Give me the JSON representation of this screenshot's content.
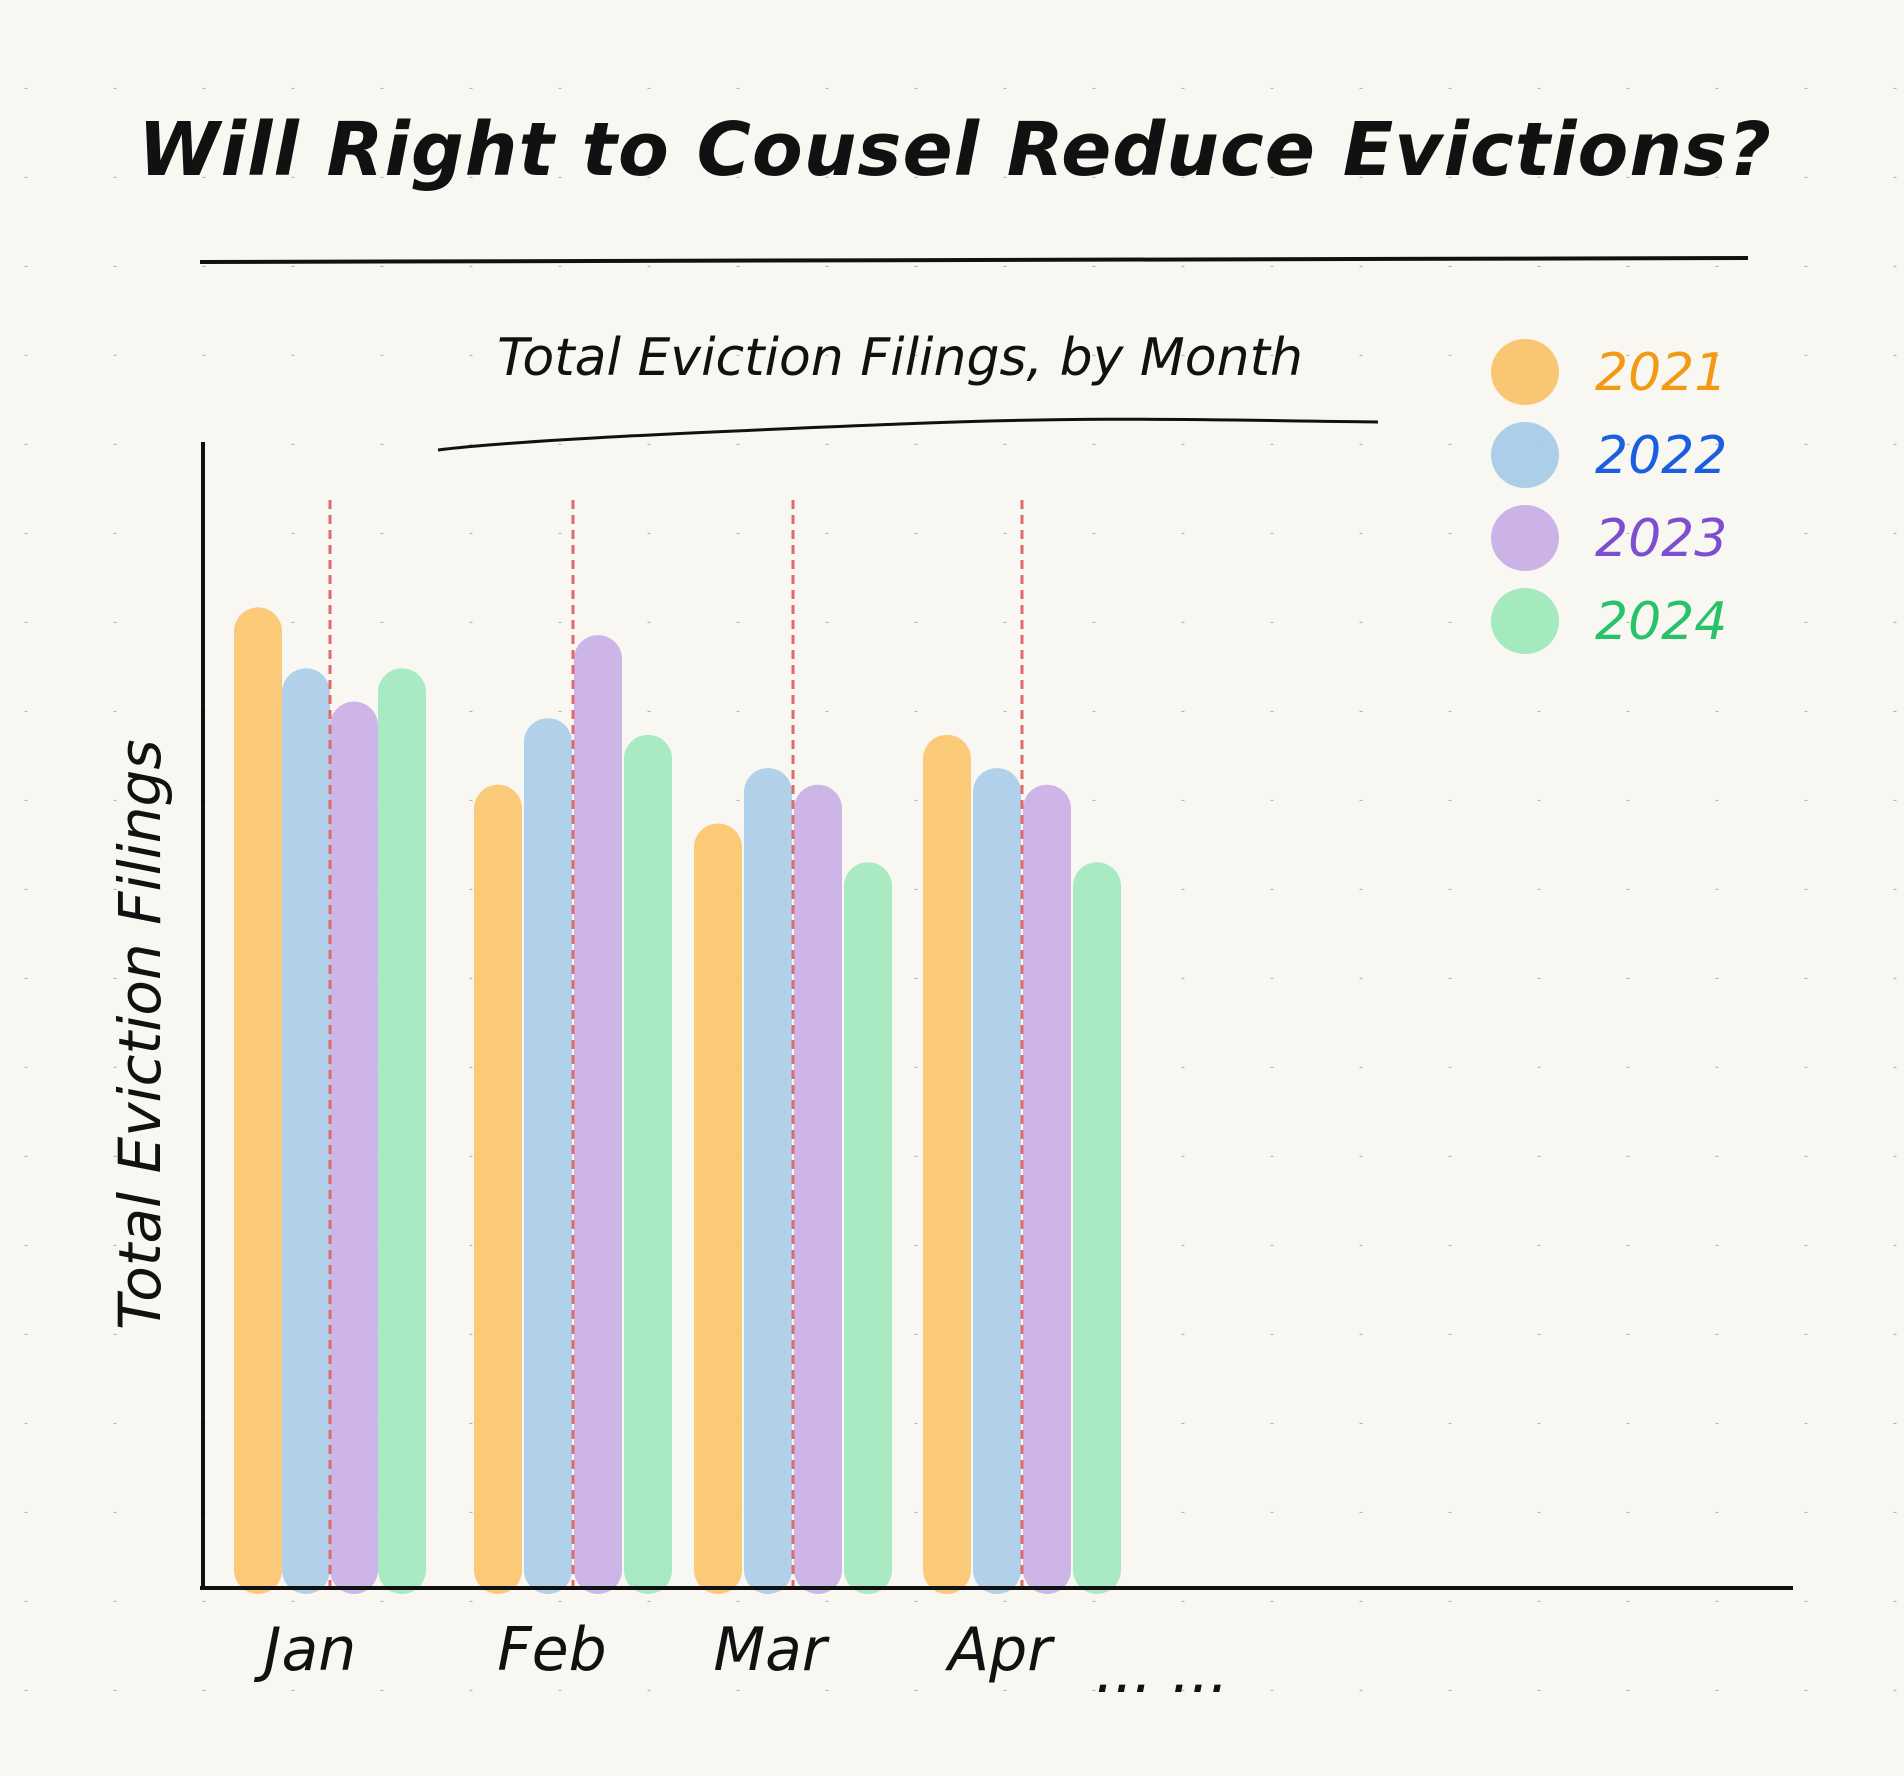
{
  "page_title": "Will Right to Cousel Reduce Evictions?",
  "chart_data": {
    "type": "bar",
    "title": "Total Eviction Filings, by Month",
    "xlabel": "",
    "ylabel": "Total Eviction Filings",
    "categories": [
      "Jan",
      "Feb",
      "Mar",
      "Apr"
    ],
    "trailing_label": "... ...",
    "ylim": [
      0,
      100
    ],
    "y_ticks_shown": false,
    "grid": "dotted paper background",
    "legend_position": "top-right",
    "series": [
      {
        "name": "2021",
        "color": "#f9c46b",
        "label_color": "#f29a14",
        "values": [
          88.5,
          72.5,
          69,
          77
        ]
      },
      {
        "name": "2022",
        "color": "#a9cbe8",
        "label_color": "#1a5fe0",
        "values": [
          83,
          78.5,
          74,
          74
        ]
      },
      {
        "name": "2023",
        "color": "#c8aee6",
        "label_color": "#7b4fcf",
        "values": [
          80,
          86,
          72.5,
          72.5
        ]
      },
      {
        "name": "2024",
        "color": "#a0e8bc",
        "label_color": "#27c26a",
        "values": [
          83,
          77,
          65.5,
          65.5
        ]
      }
    ],
    "dividers": {
      "style": "red dashed vertical line",
      "color": "#e06a6a",
      "count": 4
    }
  }
}
